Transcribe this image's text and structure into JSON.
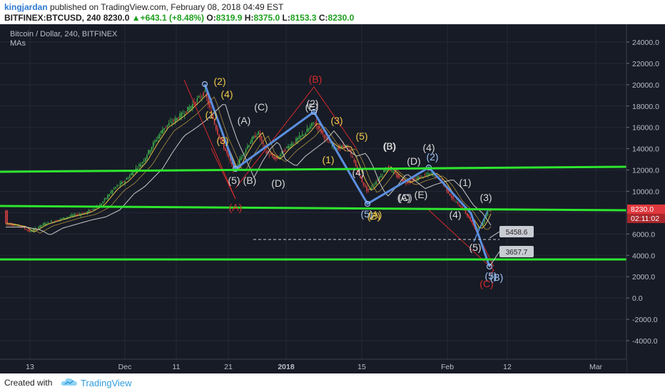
{
  "header": {
    "author": "kingjardan",
    "published": "published on TradingView.com, February 08, 2018 04:49 EST",
    "symbol": "BITFINEX:BTCUSD, 240",
    "last": "8230.0",
    "change_arrow": "▲",
    "change": "+643.1 (+8.48%)",
    "o_label": "O:",
    "o": "8319.9",
    "h_label": "H:",
    "h": "8375.0",
    "l_label": "L:",
    "l": "8153.3",
    "c_label": "C:",
    "c": "8230.0"
  },
  "chart": {
    "title": "Bitcoin / Dollar, 240, BITFINEX",
    "indicator": "MAs",
    "price_labels": [
      "24000.0",
      "22000.0",
      "20000.0",
      "18000.0",
      "16000.0",
      "14000.0",
      "12000.0",
      "10000.0",
      "8000.0",
      "6000.0",
      "4000.0",
      "2000.0",
      "0.0",
      "-2000.0",
      "-4000.0"
    ],
    "time_labels": [
      "13",
      "Dec",
      "11",
      "21",
      "2018",
      "15",
      "Feb",
      "12",
      "Mar"
    ],
    "current_price_tag": "8230.0",
    "countdown_tag": "02:11:02",
    "callouts": [
      "5458.6",
      "3657.7"
    ],
    "wave_labels": [
      "(2)",
      "(4)",
      "(1)",
      "(3)",
      "(5)",
      "(B)",
      "(A)",
      "(C)",
      "(D)",
      "(E)",
      "(2)",
      "(1)",
      "(3)",
      "(4)",
      "(5)",
      "(B)",
      "(A)",
      "(3)",
      "(5)",
      "(A)",
      "(B)",
      "(C)",
      "(D)",
      "(E)",
      "(4)",
      "(2)",
      "(1)",
      "(4)",
      "(3)",
      "(5)",
      "(5)",
      "(C)",
      "(B)",
      "(A)"
    ],
    "colors": {
      "background": "#171b26",
      "support_line": "#2ee62e",
      "impulse_line": "#5b8fe0",
      "triangle": "#d42a2a",
      "price_tag": "#e0383e",
      "candle_up": "#3fb14d",
      "candle_down": "#d64040",
      "ma_fast": "#e8c24a",
      "ma_slow": "#c9c9c9"
    }
  },
  "footer": {
    "created_with": "Created with",
    "brand": "TradingView"
  }
}
